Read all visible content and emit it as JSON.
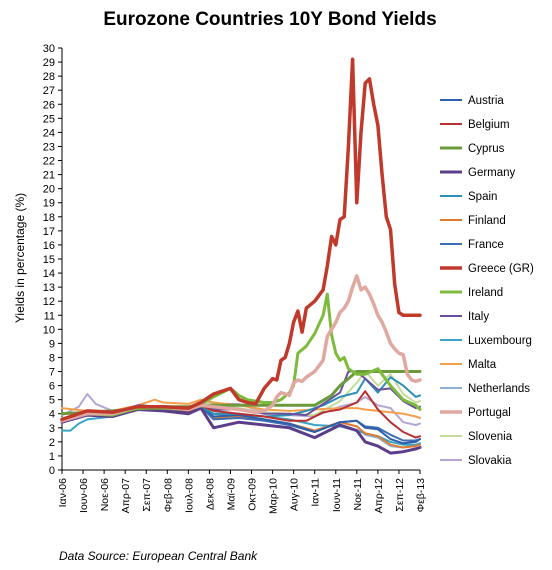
{
  "chart_data": {
    "type": "line",
    "title": "Eurozone Countries 10Y Bond Yields",
    "ylabel": "Yields in percentage (%)",
    "ylim": [
      0,
      30
    ],
    "yticks": [
      0,
      1,
      2,
      3,
      4,
      5,
      6,
      7,
      8,
      9,
      10,
      11,
      12,
      13,
      14,
      15,
      16,
      17,
      18,
      19,
      20,
      21,
      22,
      23,
      24,
      25,
      26,
      27,
      28,
      29,
      30
    ],
    "x_tick_labels": [
      "Ιαν-06",
      "Ιουν-06",
      "Νοε-06",
      "Απρ-07",
      "Σεπ-07",
      "Φεβ-08",
      "Ιουλ-08",
      "Δεκ-08",
      "Μαϊ-09",
      "Οκτ-09",
      "Μαρ-10",
      "Αυγ-10",
      "Ιαν-11",
      "Ιουν-11",
      "Νοε-11",
      "Απρ-12",
      "Σεπ-12",
      "Φεβ-13"
    ],
    "x_range_months": [
      0,
      85
    ],
    "source": "Data Source: European Central Bank",
    "series": [
      {
        "name": "Austria",
        "color": "#2e5fa8",
        "width": 2,
        "x": [
          0,
          6,
          12,
          18,
          24,
          30,
          33,
          36,
          42,
          48,
          54,
          60,
          66,
          70,
          72,
          75,
          78,
          81,
          84,
          85
        ],
        "values": [
          3.5,
          4.0,
          3.9,
          4.4,
          4.3,
          4.1,
          4.5,
          3.8,
          3.9,
          3.6,
          3.3,
          2.7,
          3.4,
          3.5,
          3.0,
          2.9,
          2.2,
          1.9,
          2.0,
          2.2
        ]
      },
      {
        "name": "Belgium",
        "color": "#b83030",
        "width": 2,
        "x": [
          0,
          6,
          12,
          18,
          24,
          30,
          33,
          36,
          42,
          48,
          54,
          58,
          62,
          66,
          70,
          72,
          75,
          78,
          81,
          84,
          85
        ],
        "values": [
          3.5,
          4.0,
          3.9,
          4.5,
          4.4,
          4.2,
          4.6,
          4.2,
          4.0,
          3.8,
          3.5,
          3.5,
          4.1,
          4.3,
          4.8,
          5.6,
          4.3,
          3.4,
          2.7,
          2.3,
          2.4
        ]
      },
      {
        "name": "Cyprus",
        "color": "#6b9a3a",
        "width": 3,
        "x": [
          0,
          12,
          24,
          30,
          36,
          42,
          48,
          54,
          60,
          64,
          66,
          68,
          70,
          72,
          75,
          78,
          81,
          84,
          85
        ],
        "values": [
          4.0,
          4.2,
          4.5,
          4.5,
          4.6,
          4.6,
          4.6,
          4.6,
          4.6,
          5.3,
          6.0,
          6.5,
          7.0,
          7.0,
          7.0,
          7.0,
          7.0,
          7.0,
          7.0
        ]
      },
      {
        "name": "Germany",
        "color": "#5b3d8a",
        "width": 3,
        "x": [
          0,
          6,
          12,
          18,
          24,
          30,
          33,
          36,
          42,
          48,
          54,
          60,
          66,
          70,
          72,
          75,
          78,
          81,
          84,
          85
        ],
        "values": [
          3.4,
          3.9,
          3.8,
          4.3,
          4.2,
          4.0,
          4.4,
          3.0,
          3.4,
          3.2,
          3.0,
          2.3,
          3.2,
          2.8,
          2.0,
          1.7,
          1.2,
          1.3,
          1.5,
          1.6
        ]
      },
      {
        "name": "Spain",
        "color": "#2c8fb5",
        "width": 2,
        "x": [
          0,
          6,
          12,
          18,
          24,
          30,
          33,
          36,
          42,
          48,
          54,
          58,
          62,
          66,
          70,
          72,
          75,
          78,
          81,
          84,
          85
        ],
        "values": [
          3.4,
          3.9,
          3.9,
          4.5,
          4.4,
          4.2,
          4.5,
          4.0,
          4.0,
          3.8,
          3.9,
          4.2,
          4.6,
          5.2,
          5.5,
          6.5,
          5.5,
          6.6,
          6.0,
          5.2,
          5.3
        ]
      },
      {
        "name": "Finland",
        "color": "#e07a2e",
        "width": 2,
        "x": [
          0,
          6,
          12,
          18,
          24,
          30,
          33,
          36,
          42,
          48,
          54,
          60,
          66,
          70,
          72,
          75,
          78,
          81,
          84,
          85
        ],
        "values": [
          3.5,
          4.0,
          3.9,
          4.4,
          4.3,
          4.1,
          4.5,
          3.7,
          3.8,
          3.6,
          3.3,
          2.8,
          3.4,
          3.1,
          2.6,
          2.4,
          1.8,
          1.6,
          1.7,
          1.8
        ]
      },
      {
        "name": "France",
        "color": "#3e6fb5",
        "width": 2,
        "x": [
          0,
          6,
          12,
          18,
          24,
          30,
          33,
          36,
          42,
          48,
          54,
          60,
          66,
          70,
          72,
          75,
          78,
          81,
          84,
          85
        ],
        "values": [
          3.4,
          4.0,
          3.9,
          4.4,
          4.3,
          4.1,
          4.5,
          3.6,
          3.7,
          3.5,
          3.2,
          2.7,
          3.4,
          3.5,
          3.1,
          3.0,
          2.5,
          2.1,
          2.1,
          2.2
        ]
      },
      {
        "name": "Greece (GR)",
        "color": "#c0392b",
        "width": 3.5,
        "x": [
          0,
          6,
          12,
          18,
          24,
          30,
          33,
          36,
          40,
          42,
          44,
          46,
          48,
          50,
          51,
          52,
          53,
          54,
          55,
          56,
          57,
          58,
          60,
          62,
          63,
          64,
          65,
          66,
          67,
          68,
          69,
          70,
          71,
          72,
          73,
          74,
          75,
          76,
          77,
          78,
          79,
          80,
          81,
          82,
          83,
          84,
          85
        ],
        "values": [
          3.6,
          4.2,
          4.1,
          4.5,
          4.5,
          4.4,
          4.8,
          5.4,
          5.8,
          5.0,
          4.8,
          4.7,
          5.8,
          6.5,
          6.4,
          7.8,
          8.0,
          9.0,
          10.5,
          11.3,
          9.8,
          11.5,
          12.0,
          12.8,
          14.5,
          16.6,
          16.0,
          17.8,
          18.0,
          23.0,
          29.2,
          19.0,
          24.0,
          27.5,
          27.8,
          26.0,
          24.5,
          21.0,
          18.0,
          17.1,
          13.2,
          11.2,
          11.0,
          11.0,
          11.0,
          11.0,
          11.0
        ]
      },
      {
        "name": "Ireland",
        "color": "#7dbb3c",
        "width": 3,
        "x": [
          0,
          6,
          12,
          18,
          24,
          30,
          33,
          36,
          40,
          42,
          44,
          46,
          48,
          50,
          52,
          54,
          55,
          56,
          58,
          60,
          62,
          63,
          64,
          65,
          66,
          67,
          68,
          69,
          70,
          72,
          75,
          78,
          81,
          84,
          85
        ],
        "values": [
          3.5,
          4.0,
          3.9,
          4.4,
          4.4,
          4.3,
          4.7,
          5.2,
          5.8,
          5.3,
          5.0,
          4.9,
          4.8,
          4.8,
          5.0,
          5.5,
          6.0,
          8.3,
          8.8,
          9.7,
          11.0,
          12.5,
          9.6,
          8.3,
          7.8,
          8.0,
          7.2,
          7.0,
          6.8,
          6.8,
          7.2,
          6.0,
          5.0,
          4.6,
          4.3
        ]
      },
      {
        "name": "Italy",
        "color": "#6a4f9e",
        "width": 2,
        "x": [
          0,
          6,
          12,
          18,
          24,
          30,
          33,
          36,
          42,
          48,
          54,
          58,
          62,
          66,
          68,
          70,
          72,
          75,
          78,
          81,
          84,
          85
        ],
        "values": [
          3.6,
          4.1,
          4.0,
          4.6,
          4.5,
          4.4,
          4.7,
          4.3,
          4.3,
          4.0,
          4.0,
          3.9,
          4.7,
          5.5,
          7.0,
          7.0,
          6.5,
          5.7,
          5.8,
          4.9,
          4.4,
          4.5
        ]
      },
      {
        "name": "Luxembourg",
        "color": "#3ba3c7",
        "width": 2,
        "x": [
          0,
          2,
          4,
          6,
          12,
          18,
          24,
          30,
          33,
          36,
          42,
          48,
          54,
          60,
          66,
          70,
          72,
          75,
          78,
          81,
          84,
          85
        ],
        "values": [
          2.8,
          2.8,
          3.3,
          3.6,
          3.8,
          4.3,
          4.4,
          4.3,
          4.5,
          4.0,
          3.9,
          3.8,
          3.6,
          3.2,
          3.1,
          2.8,
          2.6,
          2.4,
          2.0,
          1.8,
          1.8,
          1.9
        ]
      },
      {
        "name": "Malta",
        "color": "#f4a04a",
        "width": 2,
        "x": [
          0,
          6,
          12,
          18,
          22,
          24,
          30,
          33,
          36,
          42,
          48,
          54,
          60,
          66,
          70,
          72,
          75,
          78,
          81,
          84,
          85
        ],
        "values": [
          4.4,
          4.2,
          4.2,
          4.6,
          5.0,
          4.8,
          4.7,
          5.0,
          4.8,
          4.6,
          4.3,
          4.2,
          4.3,
          4.4,
          4.4,
          4.3,
          4.2,
          4.1,
          4.0,
          3.8,
          3.7
        ]
      },
      {
        "name": "Netherlands",
        "color": "#8fb0d8",
        "width": 2,
        "x": [
          0,
          6,
          12,
          18,
          24,
          30,
          33,
          36,
          42,
          48,
          54,
          60,
          66,
          70,
          72,
          75,
          78,
          81,
          84,
          85
        ],
        "values": [
          3.5,
          4.0,
          3.9,
          4.4,
          4.3,
          4.1,
          4.5,
          3.8,
          3.8,
          3.6,
          3.3,
          2.7,
          3.4,
          3.1,
          2.5,
          2.3,
          1.7,
          1.6,
          1.8,
          1.9
        ]
      },
      {
        "name": "Portugal",
        "color": "#e0a8a0",
        "width": 3.5,
        "x": [
          0,
          6,
          12,
          18,
          24,
          30,
          33,
          36,
          42,
          46,
          48,
          50,
          51,
          52,
          54,
          55,
          56,
          57,
          58,
          60,
          61,
          62,
          63,
          64,
          65,
          66,
          67,
          68,
          69,
          70,
          71,
          72,
          73,
          74,
          75,
          76,
          77,
          78,
          79,
          80,
          81,
          82,
          83,
          84,
          85
        ],
        "values": [
          3.5,
          4.0,
          4.0,
          4.5,
          4.5,
          4.3,
          4.6,
          4.5,
          4.3,
          4.1,
          4.2,
          4.6,
          5.2,
          5.5,
          5.3,
          6.2,
          6.4,
          6.3,
          6.6,
          7.0,
          7.4,
          7.8,
          9.5,
          10.0,
          10.5,
          11.2,
          11.5,
          12.0,
          13.0,
          13.8,
          12.8,
          13.0,
          12.5,
          11.8,
          11.0,
          10.5,
          9.8,
          9.0,
          8.6,
          8.3,
          8.2,
          6.8,
          6.4,
          6.3,
          6.4
        ]
      },
      {
        "name": "Slovenia",
        "color": "#c3dc9b",
        "width": 2,
        "x": [
          0,
          6,
          12,
          18,
          24,
          30,
          33,
          36,
          42,
          48,
          54,
          60,
          66,
          70,
          72,
          75,
          78,
          81,
          84,
          85
        ],
        "values": [
          3.7,
          4.0,
          3.9,
          4.4,
          4.5,
          4.4,
          4.9,
          4.6,
          4.4,
          4.1,
          4.0,
          3.9,
          4.9,
          6.2,
          7.0,
          6.0,
          6.8,
          5.4,
          4.8,
          4.9
        ]
      },
      {
        "name": "Slovakia",
        "color": "#b4a5d4",
        "width": 2,
        "x": [
          0,
          4,
          6,
          8,
          12,
          18,
          24,
          30,
          33,
          36,
          42,
          48,
          54,
          60,
          66,
          70,
          72,
          75,
          78,
          81,
          84,
          85
        ],
        "values": [
          3.9,
          4.5,
          5.4,
          4.7,
          4.2,
          4.4,
          4.5,
          4.5,
          4.8,
          4.7,
          4.7,
          4.1,
          3.9,
          3.8,
          4.5,
          4.8,
          5.2,
          4.6,
          4.4,
          3.4,
          3.2,
          3.3
        ]
      }
    ]
  }
}
